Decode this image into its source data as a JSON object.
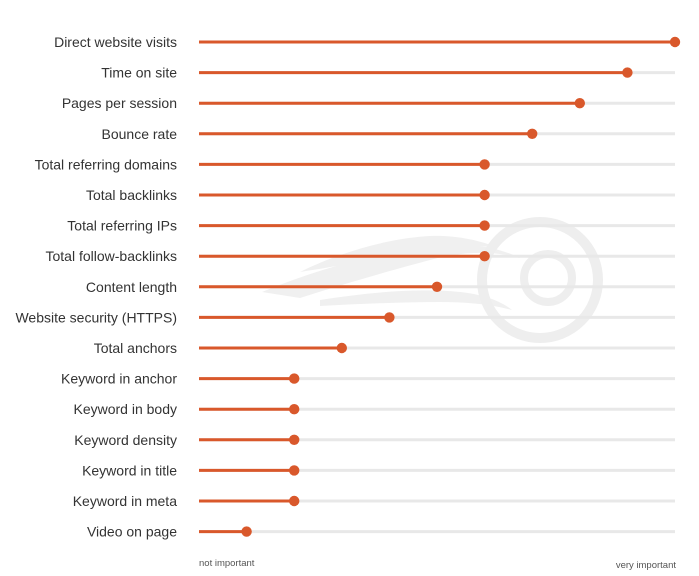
{
  "chart_data": {
    "type": "lollipop",
    "orientation": "horizontal",
    "categories": [
      "Direct website visits",
      "Time on site",
      "Pages per session",
      "Bounce rate",
      "Total referring domains",
      "Total backlinks",
      "Total referring IPs",
      "Total follow-backlinks",
      "Content length",
      "Website security (HTTPS)",
      "Total anchors",
      "Keyword in anchor",
      "Keyword in body",
      "Keyword density",
      "Keyword in title",
      "Keyword in meta",
      "Video on page"
    ],
    "values": [
      100,
      90,
      80,
      70,
      60,
      60,
      60,
      60,
      50,
      40,
      30,
      20,
      20,
      20,
      20,
      20,
      10
    ],
    "xlim": [
      0,
      100
    ],
    "x_axis_labels": {
      "min": "not important",
      "max": "very important"
    },
    "title": "",
    "xlabel": "",
    "ylabel": "",
    "grid": false,
    "colors": {
      "line": "#d9582b",
      "marker": "#d9582b",
      "track": "#e8e8e8",
      "text": "#333333",
      "watermark": "#ececec"
    }
  }
}
